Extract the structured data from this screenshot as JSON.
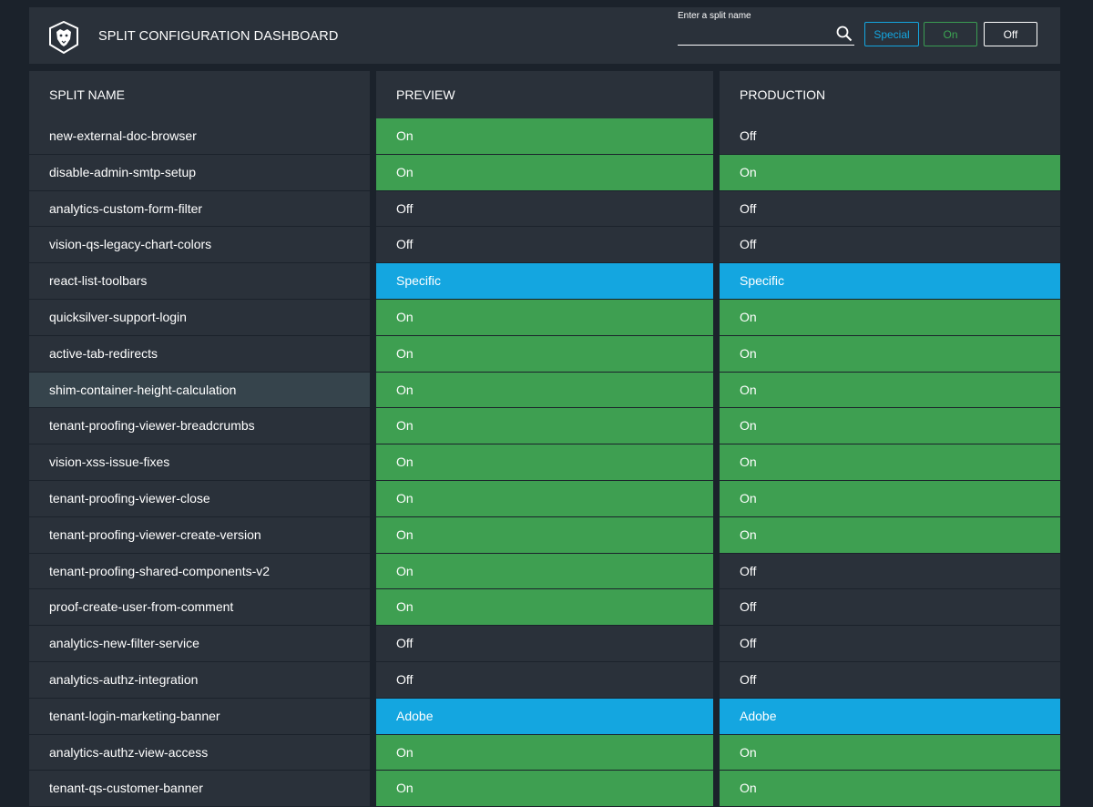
{
  "header": {
    "title": "SPLIT CONFIGURATION DASHBOARD",
    "search_label": "Enter a split name",
    "search_value": "",
    "filters": {
      "special": "Special",
      "on": "On",
      "off": "Off"
    }
  },
  "columns": {
    "name": "SPLIT NAME",
    "preview": "PREVIEW",
    "production": "PRODUCTION"
  },
  "colors": {
    "on": "#3e9f51",
    "off": "#2a313a",
    "special": "#14a6e0",
    "selected": "#36444c",
    "background": "#1b222b"
  },
  "rows": [
    {
      "name": "new-external-doc-browser",
      "preview": "On",
      "preview_state": "on",
      "production": "Off",
      "production_state": "off"
    },
    {
      "name": "disable-admin-smtp-setup",
      "preview": "On",
      "preview_state": "on",
      "production": "On",
      "production_state": "on"
    },
    {
      "name": "analytics-custom-form-filter",
      "preview": "Off",
      "preview_state": "off",
      "production": "Off",
      "production_state": "off"
    },
    {
      "name": "vision-qs-legacy-chart-colors",
      "preview": "Off",
      "preview_state": "off",
      "production": "Off",
      "production_state": "off"
    },
    {
      "name": "react-list-toolbars",
      "preview": "Specific",
      "preview_state": "special",
      "production": "Specific",
      "production_state": "special"
    },
    {
      "name": "quicksilver-support-login",
      "preview": "On",
      "preview_state": "on",
      "production": "On",
      "production_state": "on"
    },
    {
      "name": "active-tab-redirects",
      "preview": "On",
      "preview_state": "on",
      "production": "On",
      "production_state": "on"
    },
    {
      "name": "shim-container-height-calculation",
      "preview": "On",
      "preview_state": "on",
      "production": "On",
      "production_state": "on",
      "selected": true
    },
    {
      "name": "tenant-proofing-viewer-breadcrumbs",
      "preview": "On",
      "preview_state": "on",
      "production": "On",
      "production_state": "on"
    },
    {
      "name": "vision-xss-issue-fixes",
      "preview": "On",
      "preview_state": "on",
      "production": "On",
      "production_state": "on"
    },
    {
      "name": "tenant-proofing-viewer-close",
      "preview": "On",
      "preview_state": "on",
      "production": "On",
      "production_state": "on"
    },
    {
      "name": "tenant-proofing-viewer-create-version",
      "preview": "On",
      "preview_state": "on",
      "production": "On",
      "production_state": "on"
    },
    {
      "name": "tenant-proofing-shared-components-v2",
      "preview": "On",
      "preview_state": "on",
      "production": "Off",
      "production_state": "off"
    },
    {
      "name": "proof-create-user-from-comment",
      "preview": "On",
      "preview_state": "on",
      "production": "Off",
      "production_state": "off"
    },
    {
      "name": "analytics-new-filter-service",
      "preview": "Off",
      "preview_state": "off",
      "production": "Off",
      "production_state": "off"
    },
    {
      "name": "analytics-authz-integration",
      "preview": "Off",
      "preview_state": "off",
      "production": "Off",
      "production_state": "off"
    },
    {
      "name": "tenant-login-marketing-banner",
      "preview": "Adobe",
      "preview_state": "special",
      "production": "Adobe",
      "production_state": "special"
    },
    {
      "name": "analytics-authz-view-access",
      "preview": "On",
      "preview_state": "on",
      "production": "On",
      "production_state": "on"
    },
    {
      "name": "tenant-qs-customer-banner",
      "preview": "On",
      "preview_state": "on",
      "production": "On",
      "production_state": "on"
    }
  ]
}
